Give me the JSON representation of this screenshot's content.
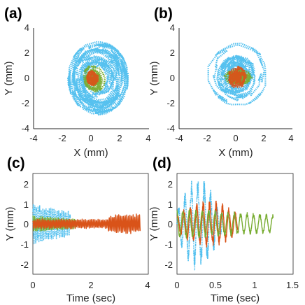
{
  "colors": {
    "blue": "#4dbeee",
    "green": "#77ac30",
    "orange": "#d95319",
    "axis": "#262626",
    "background": "#ffffff"
  },
  "chart_data": [
    {
      "panel": "(a)",
      "type": "scatter",
      "xlabel": "X (mm)",
      "ylabel": "Y (mm)",
      "xlim": [
        -4,
        4
      ],
      "ylim": [
        -4,
        4
      ],
      "xticks": [
        "-4",
        "-2",
        "0",
        "2",
        "4"
      ],
      "yticks": [
        "4",
        "2",
        "0",
        "-2",
        "-4"
      ],
      "grid": false,
      "series": [
        {
          "color": "blue",
          "style": "dotted trajectory",
          "extent": {
            "x": [
              -1.6,
              2.6
            ],
            "y": [
              -2.9,
              2.9
            ]
          }
        },
        {
          "color": "green",
          "style": "dotted trajectory",
          "extent": {
            "x": [
              -0.7,
              1.1
            ],
            "y": [
              -1.3,
              1.1
            ]
          }
        },
        {
          "color": "orange",
          "style": "dotted trajectory",
          "extent": {
            "x": [
              -0.4,
              0.6
            ],
            "y": [
              -0.8,
              0.8
            ]
          }
        }
      ]
    },
    {
      "panel": "(b)",
      "type": "scatter",
      "xlabel": "X (mm)",
      "ylabel": "Y (mm)",
      "xlim": [
        -4,
        4
      ],
      "ylim": [
        -4,
        4
      ],
      "xticks": [
        "-4",
        "-2",
        "0",
        "2",
        "4"
      ],
      "yticks": [
        "4",
        "2",
        "0",
        "-2",
        "-4"
      ],
      "grid": false,
      "series": [
        {
          "color": "blue",
          "style": "dotted trajectory",
          "extent": {
            "x": [
              -2.0,
              2.3
            ],
            "y": [
              -2.2,
              2.8
            ]
          }
        },
        {
          "color": "green",
          "style": "dotted trajectory",
          "extent": {
            "x": [
              -1.8,
              2.5
            ],
            "y": [
              -1.4,
              1.6
            ]
          }
        },
        {
          "color": "orange",
          "style": "dotted trajectory",
          "extent": {
            "x": [
              -0.7,
              1.0
            ],
            "y": [
              -1.0,
              1.2
            ]
          }
        }
      ]
    },
    {
      "panel": "(c)",
      "type": "line",
      "xlabel": "Time (sec)",
      "ylabel": "Y (mm)",
      "xlim": [
        0,
        4
      ],
      "ylim": [
        -2.5,
        2.5
      ],
      "xticks": [
        "0",
        "2",
        "4"
      ],
      "yticks": [
        "2",
        "1",
        "0",
        "-1",
        "-2"
      ],
      "grid": false,
      "series": [
        {
          "color": "blue",
          "style": "dotted",
          "time_span": [
            0,
            1.3
          ],
          "amplitude_peak": 1.0
        },
        {
          "color": "green",
          "style": "solid",
          "time_span": [
            0,
            1.5
          ],
          "amplitude_peak": 0.4
        },
        {
          "color": "orange",
          "style": "solid",
          "time_span": [
            0,
            3.75
          ],
          "amplitude_peak": 0.5
        }
      ]
    },
    {
      "panel": "(d)",
      "type": "line",
      "xlabel": "Time (sec)",
      "ylabel": "Y (mm)",
      "xlim": [
        0,
        1.5
      ],
      "ylim": [
        -2.5,
        2.5
      ],
      "xticks": [
        "0",
        "0.5",
        "1",
        "1.5"
      ],
      "yticks": [
        "2",
        "1",
        "0",
        "-1",
        "-2"
      ],
      "grid": false,
      "series": [
        {
          "color": "blue",
          "style": "dotted",
          "time_span": [
            0,
            0.6
          ],
          "amplitude_peak": 2.4
        },
        {
          "color": "orange",
          "style": "solid",
          "time_span": [
            0,
            0.8
          ],
          "amplitude_peak": 1.2
        },
        {
          "color": "green",
          "style": "solid",
          "time_span": [
            0,
            1.25
          ],
          "amplitude_peak": 0.8
        }
      ]
    }
  ]
}
